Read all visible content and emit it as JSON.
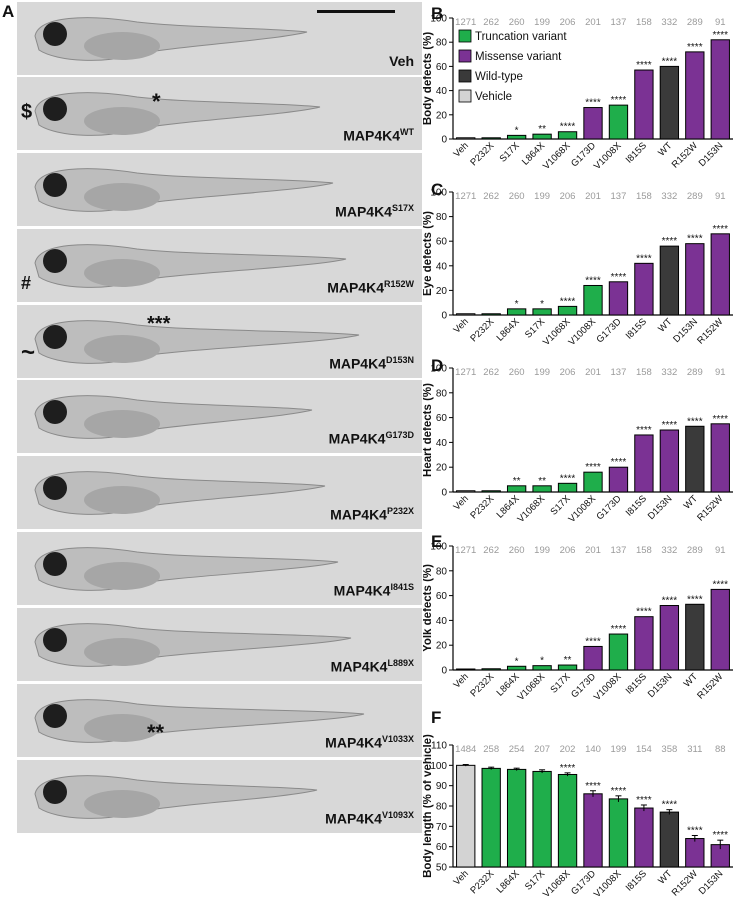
{
  "figure_panels": {
    "fish": {
      "label": "A",
      "rows": [
        {
          "label": "Veh",
          "sup": "",
          "marks": []
        },
        {
          "label": "MAP4K4",
          "sup": "WT",
          "marks": [
            "$",
            "*"
          ]
        },
        {
          "label": "MAP4K4",
          "sup": "S17X",
          "marks": []
        },
        {
          "label": "MAP4K4",
          "sup": "R152W",
          "marks": [
            "#"
          ]
        },
        {
          "label": "MAP4K4",
          "sup": "D153N",
          "marks": [
            "~",
            "***"
          ]
        },
        {
          "label": "MAP4K4",
          "sup": "G173D",
          "marks": []
        },
        {
          "label": "MAP4K4",
          "sup": "P232X",
          "marks": []
        },
        {
          "label": "MAP4K4",
          "sup": "I841S",
          "marks": []
        },
        {
          "label": "MAP4K4",
          "sup": "L889X",
          "marks": []
        },
        {
          "label": "MAP4K4",
          "sup": "V1033X",
          "marks": [
            "**"
          ]
        },
        {
          "label": "MAP4K4",
          "sup": "V1093X",
          "marks": []
        }
      ]
    }
  },
  "legend": [
    {
      "name": "Truncation variant",
      "color": "#1fae4b"
    },
    {
      "name": "Missense variant",
      "color": "#7b3294"
    },
    {
      "name": "Wild-type",
      "color": "#3a3a3a"
    },
    {
      "name": "Vehicle",
      "color": "#d3d3d3"
    }
  ],
  "chart_data": [
    {
      "panel": "B",
      "type": "bar",
      "ylabel": "Body defects (%)",
      "ylim": [
        0,
        100
      ],
      "yticks": [
        "0",
        "20",
        "40",
        "60",
        "80",
        "100"
      ],
      "categories": [
        "Veh",
        "P232X",
        "S17X",
        "L864X",
        "V1068X",
        "G173D",
        "V1008X",
        "I815S",
        "WT",
        "R152W",
        "D153N"
      ],
      "values": [
        1,
        1,
        3,
        4,
        6,
        26,
        28,
        57,
        60,
        72,
        82
      ],
      "groups": [
        "vehicle",
        "truncation",
        "truncation",
        "truncation",
        "truncation",
        "missense",
        "truncation",
        "missense",
        "wildtype",
        "missense",
        "missense"
      ],
      "n": [
        "1271",
        "262",
        "260",
        "199",
        "206",
        "201",
        "137",
        "158",
        "332",
        "289",
        "91"
      ],
      "sig": [
        "",
        "",
        "*",
        "**",
        "****",
        "****",
        "****",
        "****",
        "****",
        "****",
        "****"
      ]
    },
    {
      "panel": "C",
      "type": "bar",
      "ylabel": "Eye defects (%)",
      "ylim": [
        0,
        100
      ],
      "yticks": [
        "0",
        "20",
        "40",
        "60",
        "80",
        "100"
      ],
      "categories": [
        "Veh",
        "P232X",
        "L864X",
        "S17X",
        "V1068X",
        "V1008X",
        "G173D",
        "I815S",
        "WT",
        "D153N",
        "R152W"
      ],
      "values": [
        1,
        1,
        5,
        5,
        7,
        24,
        27,
        42,
        56,
        58,
        66
      ],
      "groups": [
        "vehicle",
        "truncation",
        "truncation",
        "truncation",
        "truncation",
        "truncation",
        "missense",
        "missense",
        "wildtype",
        "missense",
        "missense"
      ],
      "n": [
        "1271",
        "262",
        "260",
        "199",
        "206",
        "201",
        "137",
        "158",
        "332",
        "289",
        "91"
      ],
      "sig": [
        "",
        "",
        "*",
        "*",
        "****",
        "****",
        "****",
        "****",
        "****",
        "****",
        "****"
      ]
    },
    {
      "panel": "D",
      "type": "bar",
      "ylabel": "Heart defects  (%)",
      "ylim": [
        0,
        100
      ],
      "yticks": [
        "0",
        "20",
        "40",
        "60",
        "80",
        "100"
      ],
      "categories": [
        "Veh",
        "P232X",
        "L864X",
        "V1068X",
        "S17X",
        "V1008X",
        "G173D",
        "I815S",
        "D153N",
        "WT",
        "R152W"
      ],
      "values": [
        1,
        1,
        5,
        5,
        7,
        16,
        20,
        46,
        50,
        53,
        55
      ],
      "groups": [
        "vehicle",
        "truncation",
        "truncation",
        "truncation",
        "truncation",
        "truncation",
        "missense",
        "missense",
        "missense",
        "wildtype",
        "missense"
      ],
      "n": [
        "1271",
        "262",
        "260",
        "199",
        "206",
        "201",
        "137",
        "158",
        "332",
        "289",
        "91"
      ],
      "sig": [
        "",
        "",
        "**",
        "**",
        "****",
        "****",
        "****",
        "****",
        "****",
        "****",
        "****"
      ]
    },
    {
      "panel": "E",
      "type": "bar",
      "ylabel": "Yolk defects (%)",
      "ylim": [
        0,
        100
      ],
      "yticks": [
        "0",
        "20",
        "40",
        "60",
        "80",
        "100"
      ],
      "categories": [
        "Veh",
        "P232X",
        "L864X",
        "V1068X",
        "S17X",
        "G173D",
        "V1008X",
        "I815S",
        "D153N",
        "WT",
        "R152W"
      ],
      "values": [
        0.5,
        1,
        3,
        3.5,
        4,
        19,
        29,
        43,
        52,
        53,
        65
      ],
      "groups": [
        "vehicle",
        "truncation",
        "truncation",
        "truncation",
        "truncation",
        "missense",
        "truncation",
        "missense",
        "missense",
        "wildtype",
        "missense"
      ],
      "n": [
        "1271",
        "262",
        "260",
        "199",
        "206",
        "201",
        "137",
        "158",
        "332",
        "289",
        "91"
      ],
      "sig": [
        "",
        "",
        "*",
        "*",
        "**",
        "****",
        "****",
        "****",
        "****",
        "****",
        "****"
      ]
    },
    {
      "panel": "F",
      "type": "bar",
      "ylabel": "Body length (% of vehicle)",
      "ylim": [
        50,
        110
      ],
      "yticks": [
        "50",
        "60",
        "70",
        "80",
        "90",
        "100",
        "110"
      ],
      "categories": [
        "Veh",
        "P232X",
        "L864X",
        "S17X",
        "V1068X",
        "G173D",
        "V1008X",
        "I815S",
        "WT",
        "R152W",
        "D153N"
      ],
      "values": [
        100,
        98.5,
        98,
        97,
        95.5,
        86,
        83.5,
        79,
        77,
        64,
        61
      ],
      "errors": [
        0.4,
        0.6,
        0.6,
        0.8,
        0.8,
        1.5,
        1.5,
        1.5,
        1.2,
        1.5,
        2.2
      ],
      "groups": [
        "vehicle",
        "truncation",
        "truncation",
        "truncation",
        "truncation",
        "missense",
        "truncation",
        "missense",
        "wildtype",
        "missense",
        "missense"
      ],
      "n": [
        "1484",
        "258",
        "254",
        "207",
        "202",
        "140",
        "199",
        "154",
        "358",
        "311",
        "88"
      ],
      "sig": [
        "",
        "",
        "",
        "",
        "****",
        "****",
        "****",
        "****",
        "****",
        "****",
        "****"
      ]
    }
  ]
}
